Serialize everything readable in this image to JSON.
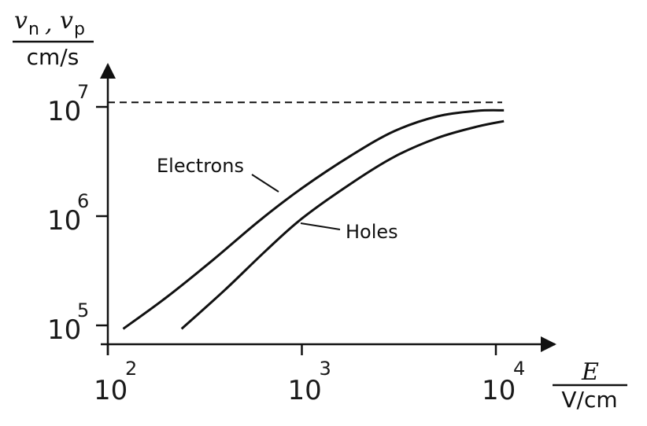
{
  "chart_data": {
    "type": "line",
    "x_scale": "log",
    "y_scale": "log",
    "xlim": [
      100,
      10000
    ],
    "ylim": [
      100000,
      10000000
    ],
    "x_tick_labels": [
      {
        "base": "10",
        "exp": "2",
        "value": 100
      },
      {
        "base": "10",
        "exp": "3",
        "value": 1000
      },
      {
        "base": "10",
        "exp": "4",
        "value": 10000
      }
    ],
    "y_tick_labels": [
      {
        "base": "10",
        "exp": "5",
        "value": 100000
      },
      {
        "base": "10",
        "exp": "6",
        "value": 1000000
      },
      {
        "base": "10",
        "exp": "7",
        "value": 10000000
      }
    ],
    "xlabel": {
      "symbol": "E",
      "unit": "V/cm"
    },
    "ylabel": {
      "symbol": "v",
      "sub1": "n",
      "sep": ",",
      "sub2": "p",
      "unit": "cm/s"
    },
    "saturation_line": {
      "y": 11000000,
      "style": "dashed"
    },
    "series": [
      {
        "name": "Electrons",
        "x": [
          120,
          200,
          350,
          600,
          1000,
          1800,
          3000,
          5000,
          8000,
          11000
        ],
        "y": [
          93000,
          180000,
          400000,
          900000,
          1800000,
          3600000,
          6000000,
          8200000,
          9200000,
          9300000
        ]
      },
      {
        "name": "Holes",
        "x": [
          240,
          400,
          650,
          1000,
          1800,
          3000,
          5000,
          8000,
          11000
        ],
        "y": [
          93000,
          210000,
          480000,
          950000,
          2000000,
          3500000,
          5200000,
          6600000,
          7400000
        ]
      }
    ]
  }
}
